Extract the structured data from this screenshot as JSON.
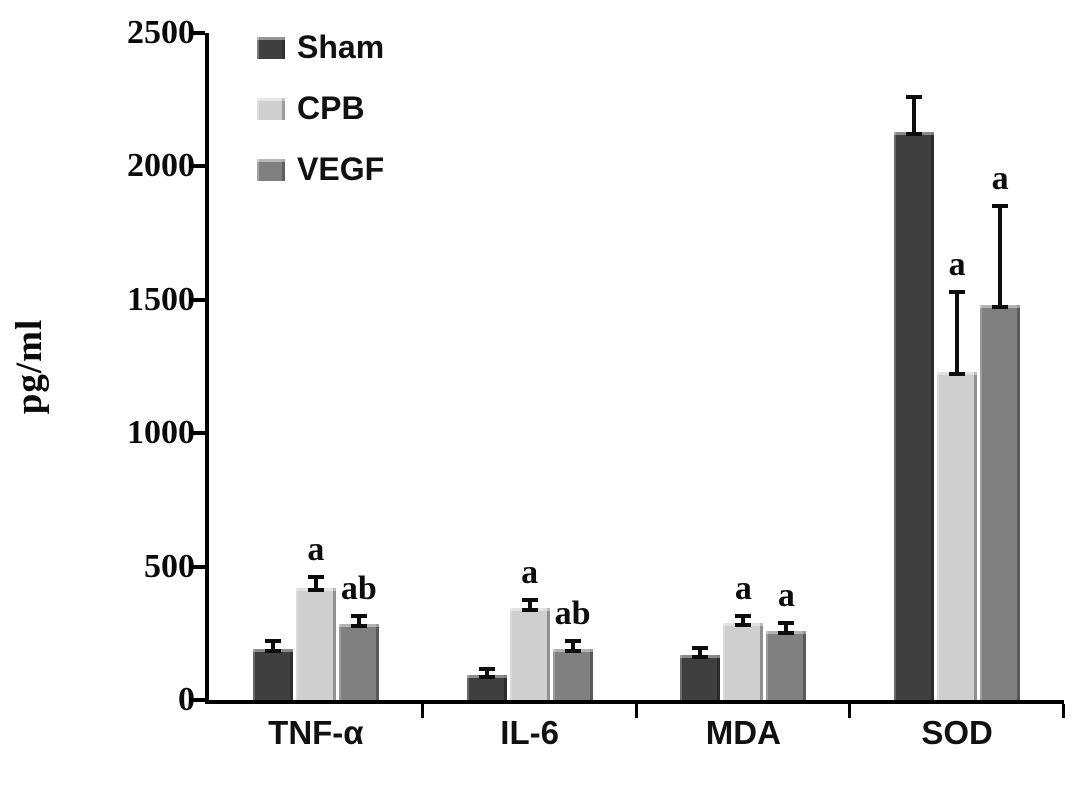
{
  "chart_data": {
    "type": "bar",
    "title": "",
    "ylabel": "pg/ml",
    "xlabel": "",
    "ylim": [
      0,
      2500
    ],
    "yticks": [
      0,
      500,
      1000,
      1500,
      2000,
      2500
    ],
    "grid": false,
    "legend_position": "top-left",
    "categories": [
      "TNF-α",
      "IL-6",
      "MDA",
      "SOD"
    ],
    "series": [
      {
        "name": "Sham",
        "color": "#3f3f3f",
        "values": [
          190,
          95,
          170,
          2130
        ],
        "errors": [
          30,
          20,
          25,
          130
        ],
        "sig_labels": [
          "",
          "",
          "",
          ""
        ]
      },
      {
        "name": "CPB",
        "color": "#cfcfcf",
        "values": [
          420,
          345,
          290,
          1230
        ],
        "errors": [
          40,
          30,
          25,
          300
        ],
        "sig_labels": [
          "a",
          "a",
          "a",
          "a"
        ]
      },
      {
        "name": "VEGF",
        "color": "#808080",
        "values": [
          285,
          190,
          260,
          1480
        ],
        "errors": [
          30,
          30,
          30,
          370
        ],
        "sig_labels": [
          "ab",
          "ab",
          "a",
          "a"
        ]
      }
    ]
  }
}
